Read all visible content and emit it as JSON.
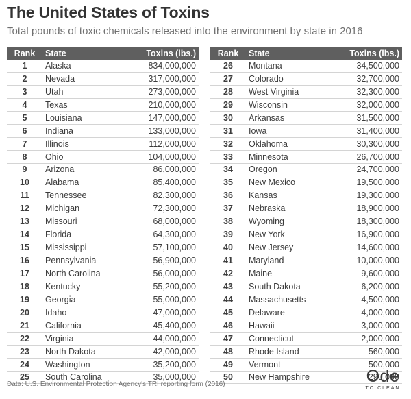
{
  "header": {
    "title": "The United States of Toxins",
    "subtitle": "Total pounds of toxic chemicals released into the environment by state in 2016"
  },
  "table": {
    "columns": [
      "Rank",
      "State",
      "Toxins (lbs.)"
    ]
  },
  "footer": {
    "source": "Data: U.S. Environmental Protection Agency's TRI reporting form (2016)",
    "logo_main": "Ode",
    "logo_sub": "TO CLEAN"
  },
  "colors": {
    "header_fill": "#5f5f5f",
    "header_text": "#ffffff",
    "row_divider": "#d4d4d4"
  },
  "chart_data": {
    "type": "table",
    "title": "The United States of Toxins",
    "subtitle": "Total pounds of toxic chemicals released into the environment by state in 2016",
    "columns": [
      "Rank",
      "State",
      "Toxins (lbs.)"
    ],
    "rows": [
      [
        "1",
        "Alaska",
        "834,000,000"
      ],
      [
        "2",
        "Nevada",
        "317,000,000"
      ],
      [
        "3",
        "Utah",
        "273,000,000"
      ],
      [
        "4",
        "Texas",
        "210,000,000"
      ],
      [
        "5",
        "Louisiana",
        "147,000,000"
      ],
      [
        "6",
        "Indiana",
        "133,000,000"
      ],
      [
        "7",
        "Illinois",
        "112,000,000"
      ],
      [
        "8",
        "Ohio",
        "104,000,000"
      ],
      [
        "9",
        "Arizona",
        "86,000,000"
      ],
      [
        "10",
        "Alabama",
        "85,400,000"
      ],
      [
        "11",
        "Tennessee",
        "82,300,000"
      ],
      [
        "12",
        "Michigan",
        "72,300,000"
      ],
      [
        "13",
        "Missouri",
        "68,000,000"
      ],
      [
        "14",
        "Florida",
        "64,300,000"
      ],
      [
        "15",
        "Mississippi",
        "57,100,000"
      ],
      [
        "16",
        "Pennsylvania",
        "56,900,000"
      ],
      [
        "17",
        "North Carolina",
        "56,000,000"
      ],
      [
        "18",
        "Kentucky",
        "55,200,000"
      ],
      [
        "19",
        "Georgia",
        "55,000,000"
      ],
      [
        "20",
        "Idaho",
        "47,000,000"
      ],
      [
        "21",
        "California",
        "45,400,000"
      ],
      [
        "22",
        "Virginia",
        "44,000,000"
      ],
      [
        "23",
        "North Dakota",
        "42,000,000"
      ],
      [
        "24",
        "Washington",
        "35,200,000"
      ],
      [
        "25",
        "South Carolina",
        "35,000,000"
      ],
      [
        "26",
        "Montana",
        "34,500,000"
      ],
      [
        "27",
        "Colorado",
        "32,700,000"
      ],
      [
        "28",
        "West Virginia",
        "32,300,000"
      ],
      [
        "29",
        "Wisconsin",
        "32,000,000"
      ],
      [
        "30",
        "Arkansas",
        "31,500,000"
      ],
      [
        "31",
        "Iowa",
        "31,400,000"
      ],
      [
        "32",
        "Oklahoma",
        "30,300,000"
      ],
      [
        "33",
        "Minnesota",
        "26,700,000"
      ],
      [
        "34",
        "Oregon",
        "24,700,000"
      ],
      [
        "35",
        "New Mexico",
        "19,500,000"
      ],
      [
        "36",
        "Kansas",
        "19,300,000"
      ],
      [
        "37",
        "Nebraska",
        "18,900,000"
      ],
      [
        "38",
        "Wyoming",
        "18,300,000"
      ],
      [
        "39",
        "New York",
        "16,900,000"
      ],
      [
        "40",
        "New Jersey",
        "14,600,000"
      ],
      [
        "41",
        "Maryland",
        "10,000,000"
      ],
      [
        "42",
        "Maine",
        "9,600,000"
      ],
      [
        "43",
        "South Dakota",
        "6,200,000"
      ],
      [
        "44",
        "Massachusetts",
        "4,500,000"
      ],
      [
        "45",
        "Delaware",
        "4,000,000"
      ],
      [
        "46",
        "Hawaii",
        "3,000,000"
      ],
      [
        "47",
        "Connecticut",
        "2,000,000"
      ],
      [
        "48",
        "Rhode Island",
        "560,000"
      ],
      [
        "49",
        "Vermont",
        "500,000"
      ],
      [
        "50",
        "New Hampshire",
        "290,000"
      ]
    ]
  }
}
